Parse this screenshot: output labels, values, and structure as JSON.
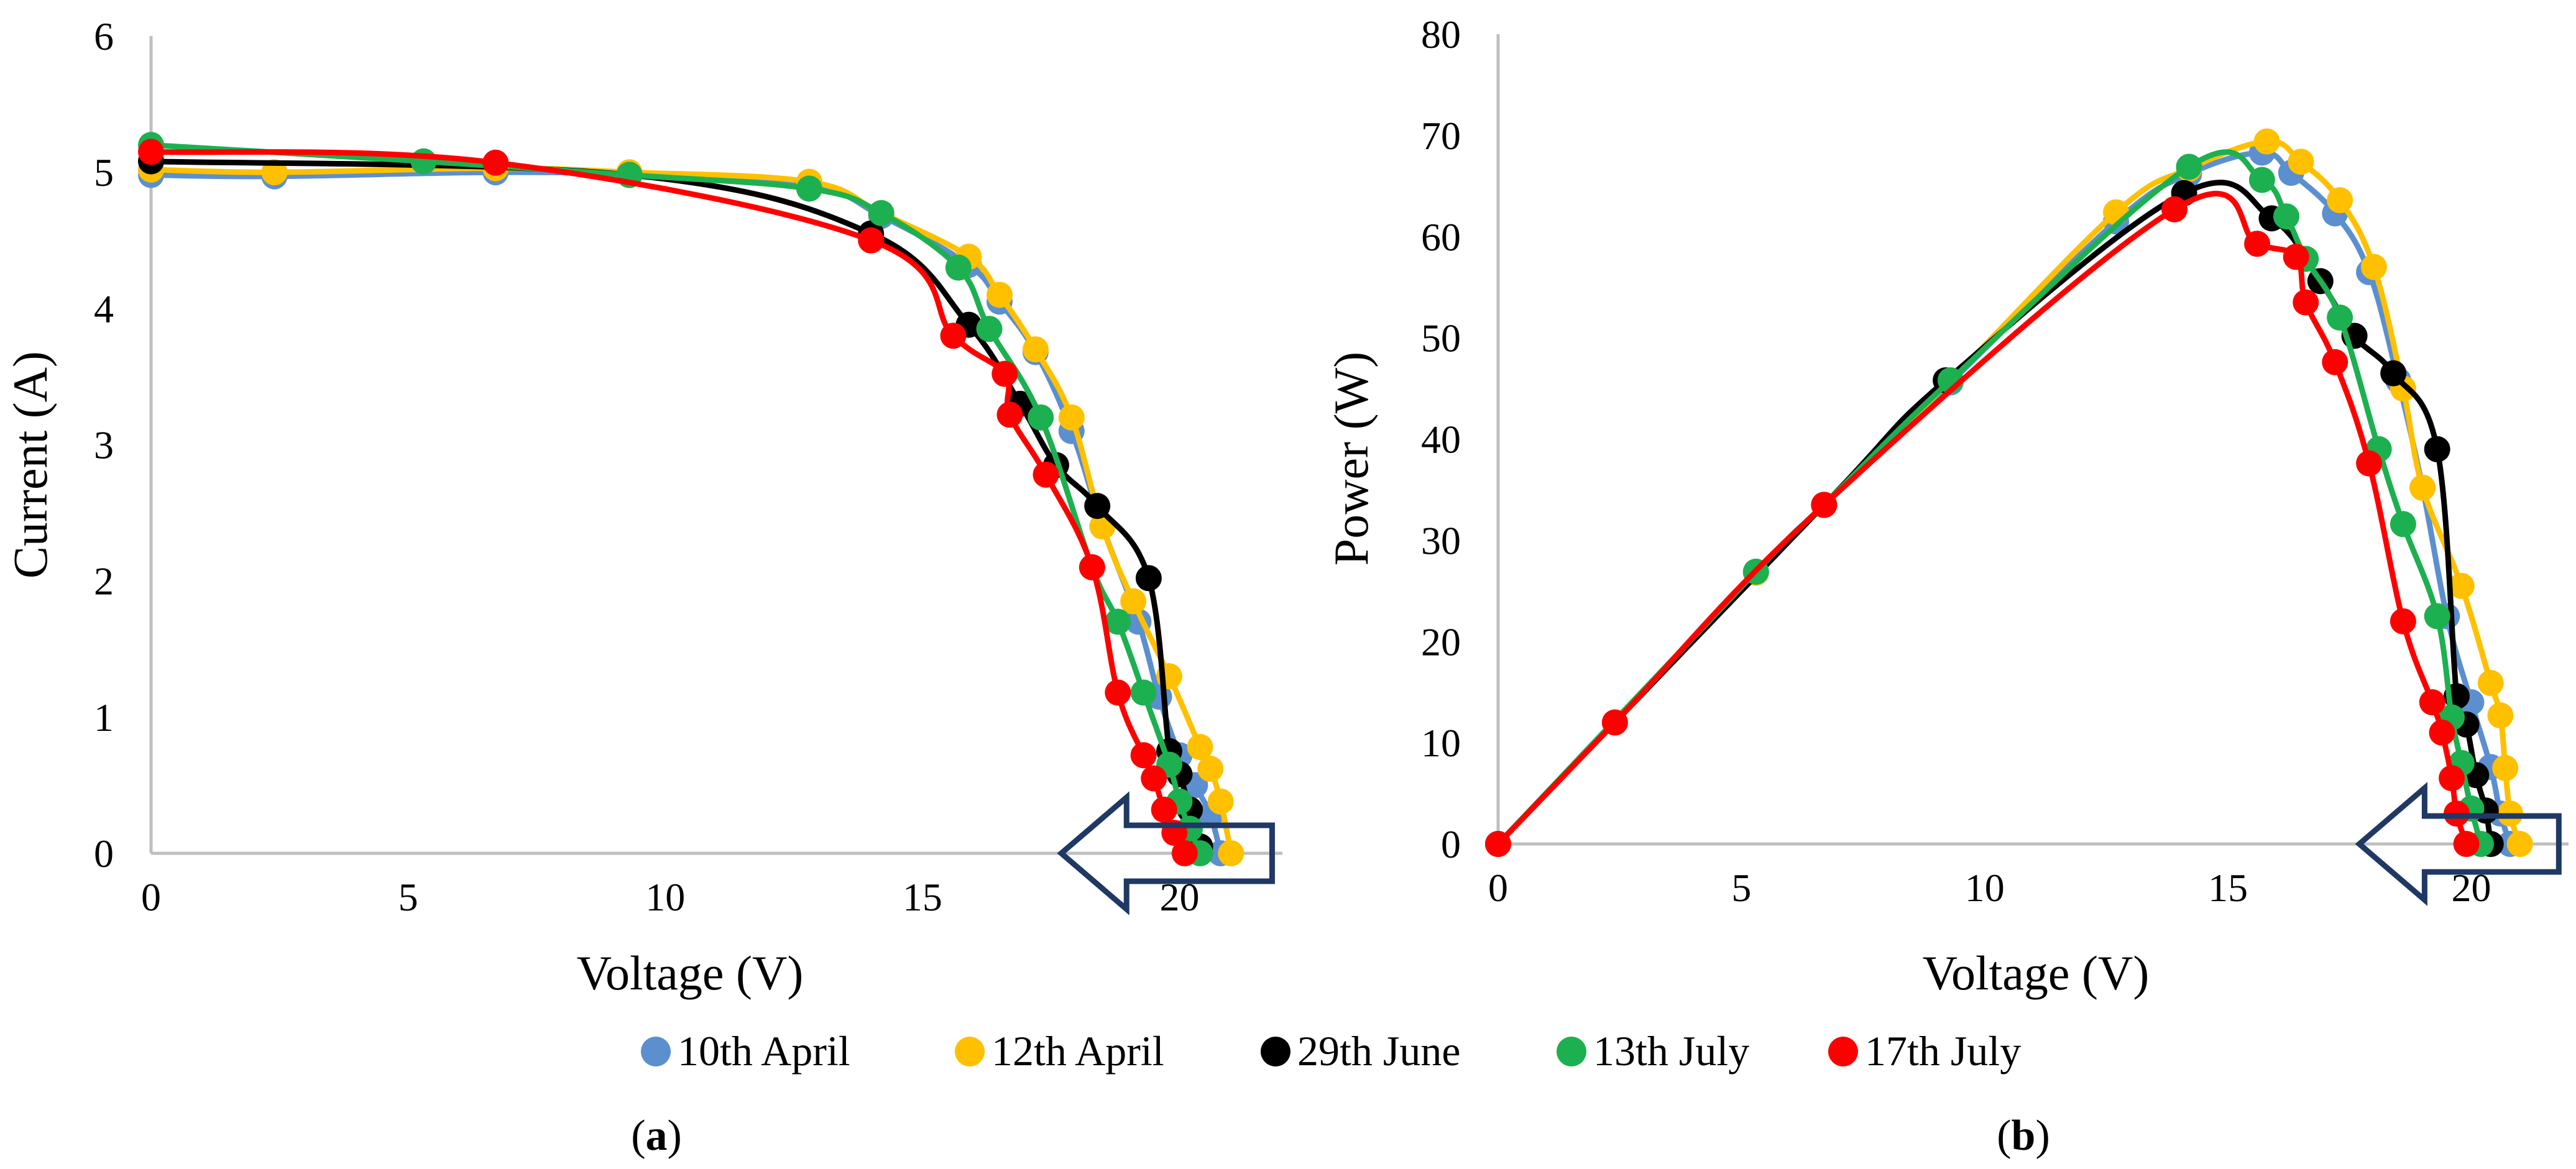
{
  "chart_data": [
    {
      "type": "line",
      "panel_label": "a",
      "xlabel": "Voltage (V)",
      "ylabel": "Current (A)",
      "xlim": [
        0,
        22
      ],
      "ylim": [
        0,
        6
      ],
      "xticks": [
        0,
        5,
        10,
        15,
        20
      ],
      "yticks": [
        0,
        1,
        2,
        3,
        4,
        5,
        6
      ],
      "series": [
        {
          "name": "10th April",
          "color": "#5B8FD0",
          "points": [
            [
              0,
              4.98
            ],
            [
              2.4,
              4.97
            ],
            [
              6.7,
              5.0
            ],
            [
              9.3,
              4.98
            ],
            [
              12.8,
              4.9
            ],
            [
              14.2,
              4.68
            ],
            [
              15.9,
              4.32
            ],
            [
              16.5,
              4.05
            ],
            [
              17.2,
              3.68
            ],
            [
              17.9,
              3.1
            ],
            [
              18.5,
              2.4
            ],
            [
              19.2,
              1.7
            ],
            [
              19.6,
              1.15
            ],
            [
              20.0,
              0.72
            ],
            [
              20.3,
              0.5
            ],
            [
              20.6,
              0.28
            ],
            [
              20.8,
              0.0
            ]
          ]
        },
        {
          "name": "12th April",
          "color": "#FFC000",
          "points": [
            [
              0,
              5.02
            ],
            [
              2.4,
              5.0
            ],
            [
              6.7,
              5.03
            ],
            [
              9.3,
              5.0
            ],
            [
              12.8,
              4.93
            ],
            [
              14.2,
              4.7
            ],
            [
              15.9,
              4.38
            ],
            [
              16.5,
              4.1
            ],
            [
              17.2,
              3.7
            ],
            [
              17.9,
              3.2
            ],
            [
              18.5,
              2.4
            ],
            [
              19.1,
              1.85
            ],
            [
              19.8,
              1.3
            ],
            [
              20.4,
              0.78
            ],
            [
              20.6,
              0.62
            ],
            [
              20.8,
              0.38
            ],
            [
              21.0,
              0.0
            ]
          ]
        },
        {
          "name": "29th June",
          "color": "#000000",
          "points": [
            [
              0,
              5.08
            ],
            [
              9.3,
              4.98
            ],
            [
              14.0,
              4.55
            ],
            [
              15.9,
              3.88
            ],
            [
              16.9,
              3.3
            ],
            [
              17.6,
              2.85
            ],
            [
              18.4,
              2.55
            ],
            [
              19.4,
              2.02
            ],
            [
              19.8,
              0.75
            ],
            [
              20.0,
              0.58
            ],
            [
              20.2,
              0.32
            ],
            [
              20.4,
              0.05
            ]
          ]
        },
        {
          "name": "13th July",
          "color": "#1DB050",
          "points": [
            [
              0,
              5.2
            ],
            [
              5.3,
              5.08
            ],
            [
              9.3,
              4.98
            ],
            [
              12.8,
              4.88
            ],
            [
              14.2,
              4.7
            ],
            [
              15.7,
              4.3
            ],
            [
              16.3,
              3.85
            ],
            [
              17.3,
              3.2
            ],
            [
              18.3,
              2.1
            ],
            [
              18.8,
              1.7
            ],
            [
              19.3,
              1.18
            ],
            [
              19.8,
              0.65
            ],
            [
              20.0,
              0.38
            ],
            [
              20.2,
              0.18
            ],
            [
              20.4,
              0.0
            ]
          ]
        },
        {
          "name": "17th July",
          "color": "#FF0000",
          "points": [
            [
              0,
              5.15
            ],
            [
              6.7,
              5.07
            ],
            [
              14.0,
              4.5
            ],
            [
              15.6,
              3.8
            ],
            [
              16.6,
              3.52
            ],
            [
              16.7,
              3.22
            ],
            [
              17.4,
              2.78
            ],
            [
              18.3,
              2.1
            ],
            [
              18.8,
              1.18
            ],
            [
              19.3,
              0.72
            ],
            [
              19.5,
              0.55
            ],
            [
              19.7,
              0.32
            ],
            [
              19.9,
              0.15
            ],
            [
              20.1,
              0.0
            ]
          ]
        }
      ]
    },
    {
      "type": "line",
      "panel_label": "b",
      "xlabel": "Voltage (V)",
      "ylabel": "Power (W)",
      "xlim": [
        0,
        22
      ],
      "ylim": [
        0,
        80
      ],
      "xticks": [
        0,
        5,
        10,
        15,
        20
      ],
      "yticks": [
        0,
        10,
        20,
        30,
        40,
        50,
        60,
        70,
        80
      ],
      "series": [
        {
          "name": "10th April",
          "color": "#5B8FD0",
          "points": [
            [
              0,
              0
            ],
            [
              2.4,
              12
            ],
            [
              5.3,
              26.8
            ],
            [
              6.7,
              33.5
            ],
            [
              9.3,
              45.6
            ],
            [
              12.7,
              61.5
            ],
            [
              14.2,
              66.2
            ],
            [
              15.7,
              68.3
            ],
            [
              16.3,
              66.3
            ],
            [
              17.2,
              62.3
            ],
            [
              17.9,
              56.5
            ],
            [
              18.5,
              45.8
            ],
            [
              19.0,
              35.2
            ],
            [
              19.5,
              22.5
            ],
            [
              20.0,
              14.0
            ],
            [
              20.4,
              7.6
            ],
            [
              20.6,
              3.0
            ],
            [
              20.8,
              0
            ]
          ]
        },
        {
          "name": "12th April",
          "color": "#FFC000",
          "points": [
            [
              0,
              0
            ],
            [
              2.4,
              12
            ],
            [
              5.3,
              26.8
            ],
            [
              6.7,
              33.5
            ],
            [
              9.3,
              45.8
            ],
            [
              12.7,
              62.4
            ],
            [
              14.2,
              66.7
            ],
            [
              15.8,
              69.4
            ],
            [
              16.5,
              67.4
            ],
            [
              17.3,
              63.6
            ],
            [
              18.0,
              57.0
            ],
            [
              18.6,
              45.0
            ],
            [
              19.0,
              35.2
            ],
            [
              19.8,
              25.5
            ],
            [
              20.4,
              15.9
            ],
            [
              20.6,
              12.7
            ],
            [
              20.7,
              7.5
            ],
            [
              20.8,
              3.0
            ],
            [
              21.0,
              0
            ]
          ]
        },
        {
          "name": "29th June",
          "color": "#000000",
          "points": [
            [
              0,
              0
            ],
            [
              6.7,
              33.5
            ],
            [
              9.2,
              45.8
            ],
            [
              14.1,
              64.3
            ],
            [
              15.9,
              61.8
            ],
            [
              16.9,
              55.6
            ],
            [
              17.6,
              50.2
            ],
            [
              18.4,
              46.5
            ],
            [
              19.3,
              39.0
            ],
            [
              19.7,
              14.6
            ],
            [
              19.9,
              11.8
            ],
            [
              20.1,
              6.8
            ],
            [
              20.3,
              3.3
            ],
            [
              20.4,
              0
            ]
          ]
        },
        {
          "name": "13th July",
          "color": "#1DB050",
          "points": [
            [
              0,
              0
            ],
            [
              5.3,
              26.9
            ],
            [
              6.7,
              33.5
            ],
            [
              9.3,
              45.8
            ],
            [
              14.2,
              66.9
            ],
            [
              15.7,
              65.6
            ],
            [
              16.2,
              62.0
            ],
            [
              16.6,
              57.8
            ],
            [
              17.3,
              52.0
            ],
            [
              18.1,
              39.0
            ],
            [
              18.6,
              31.6
            ],
            [
              19.3,
              22.5
            ],
            [
              19.6,
              12.5
            ],
            [
              19.8,
              8.0
            ],
            [
              20.0,
              3.5
            ],
            [
              20.2,
              0
            ]
          ]
        },
        {
          "name": "17th July",
          "color": "#FF0000",
          "points": [
            [
              0,
              0
            ],
            [
              2.4,
              12
            ],
            [
              6.7,
              33.5
            ],
            [
              13.9,
              62.7
            ],
            [
              15.6,
              59.3
            ],
            [
              16.4,
              58.0
            ],
            [
              16.6,
              53.5
            ],
            [
              17.2,
              47.6
            ],
            [
              17.9,
              37.6
            ],
            [
              18.6,
              22.0
            ],
            [
              19.2,
              14.0
            ],
            [
              19.4,
              11.0
            ],
            [
              19.6,
              6.5
            ],
            [
              19.7,
              3.0
            ],
            [
              19.9,
              0
            ]
          ]
        }
      ]
    }
  ],
  "legend": {
    "placement": "bottom-center",
    "items": [
      {
        "label": "10th April",
        "color": "#5B8FD0"
      },
      {
        "label": "12th April",
        "color": "#FFC000"
      },
      {
        "label": "29th June",
        "color": "#000000"
      },
      {
        "label": "13th July",
        "color": "#1DB050"
      },
      {
        "label": "17th July",
        "color": "#FF0000"
      }
    ]
  },
  "panel_labels": [
    "a",
    "b"
  ],
  "arrow_color": "#1F3864"
}
